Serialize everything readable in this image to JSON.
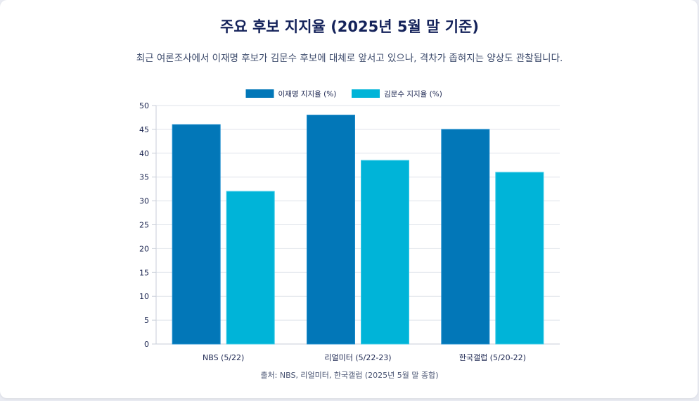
{
  "header": {
    "title": "주요 후보 지지율 (2025년 5월 말 기준)",
    "subtitle": "최근 여론조사에서 이재명 후보가 김문수 후보에 대체로 앞서고 있으나, 격차가 좁혀지는 양상도 관찰됩니다."
  },
  "footer": {
    "source": "출처: NBS, 리얼미터, 한국갤럽 (2025년 5월 말 종합)"
  },
  "chart_data": {
    "type": "bar",
    "categories": [
      "NBS (5/22)",
      "리얼미터 (5/22-23)",
      "한국갤럽 (5/20-22)"
    ],
    "series": [
      {
        "name": "이재명 지지율 (%)",
        "values": [
          46,
          48,
          45
        ],
        "color": "#0277b8"
      },
      {
        "name": "김문수 지지율 (%)",
        "values": [
          32,
          38.5,
          36
        ],
        "color": "#00b4d8"
      }
    ],
    "ylim": [
      0,
      50
    ],
    "yticks": [
      0,
      5,
      10,
      15,
      20,
      25,
      30,
      35,
      40,
      45,
      50
    ],
    "grid": true,
    "legend": "top-center"
  }
}
